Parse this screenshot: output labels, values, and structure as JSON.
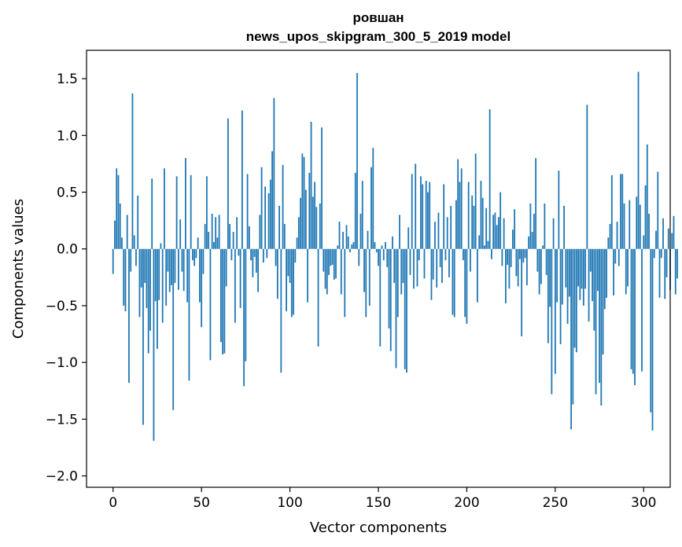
{
  "chart_data": {
    "type": "bar",
    "title_line1": "ровшан",
    "title_line2": "news_upos_skipgram_300_5_2019 model",
    "xlabel": "Vector components",
    "ylabel": "Components values",
    "xlim": [
      -15,
      315
    ],
    "ylim": [
      -2.1,
      1.75
    ],
    "xticks": [
      0,
      50,
      100,
      150,
      200,
      250,
      300
    ],
    "xtick_labels": [
      "0",
      "50",
      "100",
      "150",
      "200",
      "250",
      "300"
    ],
    "yticks": [
      -2.0,
      -1.5,
      -1.0,
      -0.5,
      0.0,
      0.5,
      1.0,
      1.5
    ],
    "ytick_labels": [
      "−2.0",
      "−1.5",
      "−1.0",
      "−0.5",
      "0.0",
      "0.5",
      "1.0",
      "1.5"
    ],
    "bar_color": "#1f77b4",
    "values": [
      -0.22,
      0.25,
      0.71,
      0.65,
      0.4,
      0.1,
      -0.5,
      -0.55,
      0.3,
      -1.18,
      -0.2,
      1.37,
      0.12,
      -0.15,
      0.47,
      -0.6,
      -0.34,
      -1.55,
      -0.3,
      -0.52,
      -0.92,
      -0.72,
      0.62,
      -1.69,
      -0.46,
      -0.88,
      -0.45,
      0.05,
      -0.65,
      0.71,
      -0.5,
      -0.2,
      -0.38,
      -0.32,
      -1.42,
      -0.3,
      0.64,
      -0.36,
      0.26,
      -0.2,
      -0.37,
      0.8,
      -0.47,
      -1.16,
      0.65,
      -0.1,
      -0.15,
      -0.08,
      0.1,
      -0.47,
      -0.69,
      -0.22,
      0.22,
      0.64,
      0.15,
      -0.98,
      0.31,
      0.06,
      0.28,
      0.1,
      0.3,
      -0.82,
      -0.93,
      -0.92,
      -0.33,
      1.15,
      0.22,
      -0.1,
      0.15,
      -0.65,
      0.28,
      -0.06,
      -0.52,
      1.22,
      -1.21,
      -0.99,
      0.66,
      0.2,
      -0.1,
      -0.25,
      -0.07,
      -0.21,
      -0.38,
      0.3,
      0.72,
      -0.12,
      0.55,
      -0.08,
      0.49,
      0.61,
      0.86,
      1.33,
      -0.15,
      -0.44,
      0.38,
      -1.09,
      0.74,
      0.22,
      -0.55,
      -0.24,
      -0.3,
      -0.6,
      -0.58,
      -0.12,
      0.1,
      0.28,
      0.45,
      0.84,
      0.81,
      0.52,
      -0.47,
      0.67,
      1.12,
      0.46,
      0.59,
      0.37,
      -0.86,
      0.4,
      1.07,
      -0.2,
      -0.35,
      -0.4,
      -0.23,
      -0.15,
      -0.14,
      -0.27,
      -0.26,
      0.03,
      0.24,
      -0.4,
      0.15,
      -0.6,
      0.21,
      0.11,
      -0.03,
      0.04,
      0.06,
      0.67,
      1.55,
      -0.15,
      0.31,
      0.6,
      -0.38,
      -0.6,
      0.16,
      -0.5,
      0.72,
      0.89,
      0.06,
      -0.03,
      -0.15,
      -0.86,
      0.03,
      -0.1,
      0.06,
      -0.16,
      -0.7,
      -0.9,
      0.11,
      -0.3,
      -1.05,
      -0.6,
      0.3,
      -0.4,
      -0.3,
      -1.06,
      -1.09,
      0.19,
      -0.23,
      0.66,
      -0.35,
      0.75,
      -0.33,
      -0.1,
      0.64,
      0.57,
      -0.26,
      0.6,
      0.5,
      0.59,
      -0.45,
      -0.27,
      0.24,
      -0.34,
      0.32,
      -0.16,
      -0.3,
      0.57,
      -0.1,
      0.28,
      -0.25,
      0.38,
      -0.58,
      -0.6,
      0.43,
      0.79,
      0.59,
      0.71,
      -0.1,
      -0.6,
      -0.66,
      0.59,
      -0.2,
      0.47,
      0.38,
      0.84,
      -0.47,
      0.12,
      0.6,
      0.45,
      0.03,
      0.36,
      0.07,
      1.23,
      -0.09,
      0.3,
      0.32,
      0.21,
      0.28,
      0.5,
      -0.15,
      0.27,
      -0.48,
      -0.14,
      -0.35,
      -0.16,
      0.17,
      0.35,
      -0.24,
      -0.33,
      -0.09,
      -0.77,
      -0.12,
      -0.08,
      -0.32,
      0.11,
      0.4,
      0.15,
      0.31,
      0.8,
      -0.2,
      -0.4,
      -0.31,
      0.03,
      0.4,
      -0.23,
      -0.83,
      -0.51,
      -1.28,
      0.27,
      -1.1,
      -0.47,
      0.69,
      -0.84,
      -0.49,
      0.38,
      -0.34,
      -0.66,
      -0.42,
      -1.59,
      -1.37,
      -0.87,
      -0.91,
      -0.33,
      -0.45,
      -0.35,
      -0.5,
      -0.35,
      1.27,
      -0.64,
      -0.2,
      -0.46,
      -0.72,
      -1.28,
      -0.37,
      -1.18,
      -1.38,
      -0.93,
      -0.53,
      -0.43,
      0.1,
      0.22,
      0.65,
      -0.41,
      -0.13,
      0.24,
      -0.15,
      0.66,
      0.66,
      0.4,
      -0.4,
      -0.33,
      0.43,
      -1.06,
      -1.1,
      -1.2,
      0.46,
      1.56,
      0.39,
      -1.08,
      0.12,
      0.56,
      0.92,
      0.31,
      -1.44,
      -1.6,
      -0.08,
      0.16,
      0.68,
      -0.43,
      -0.08,
      0.27,
      -0.44,
      -0.25,
      0.18,
      -0.36,
      0.14,
      0.29,
      -0.4,
      -0.26
    ]
  }
}
